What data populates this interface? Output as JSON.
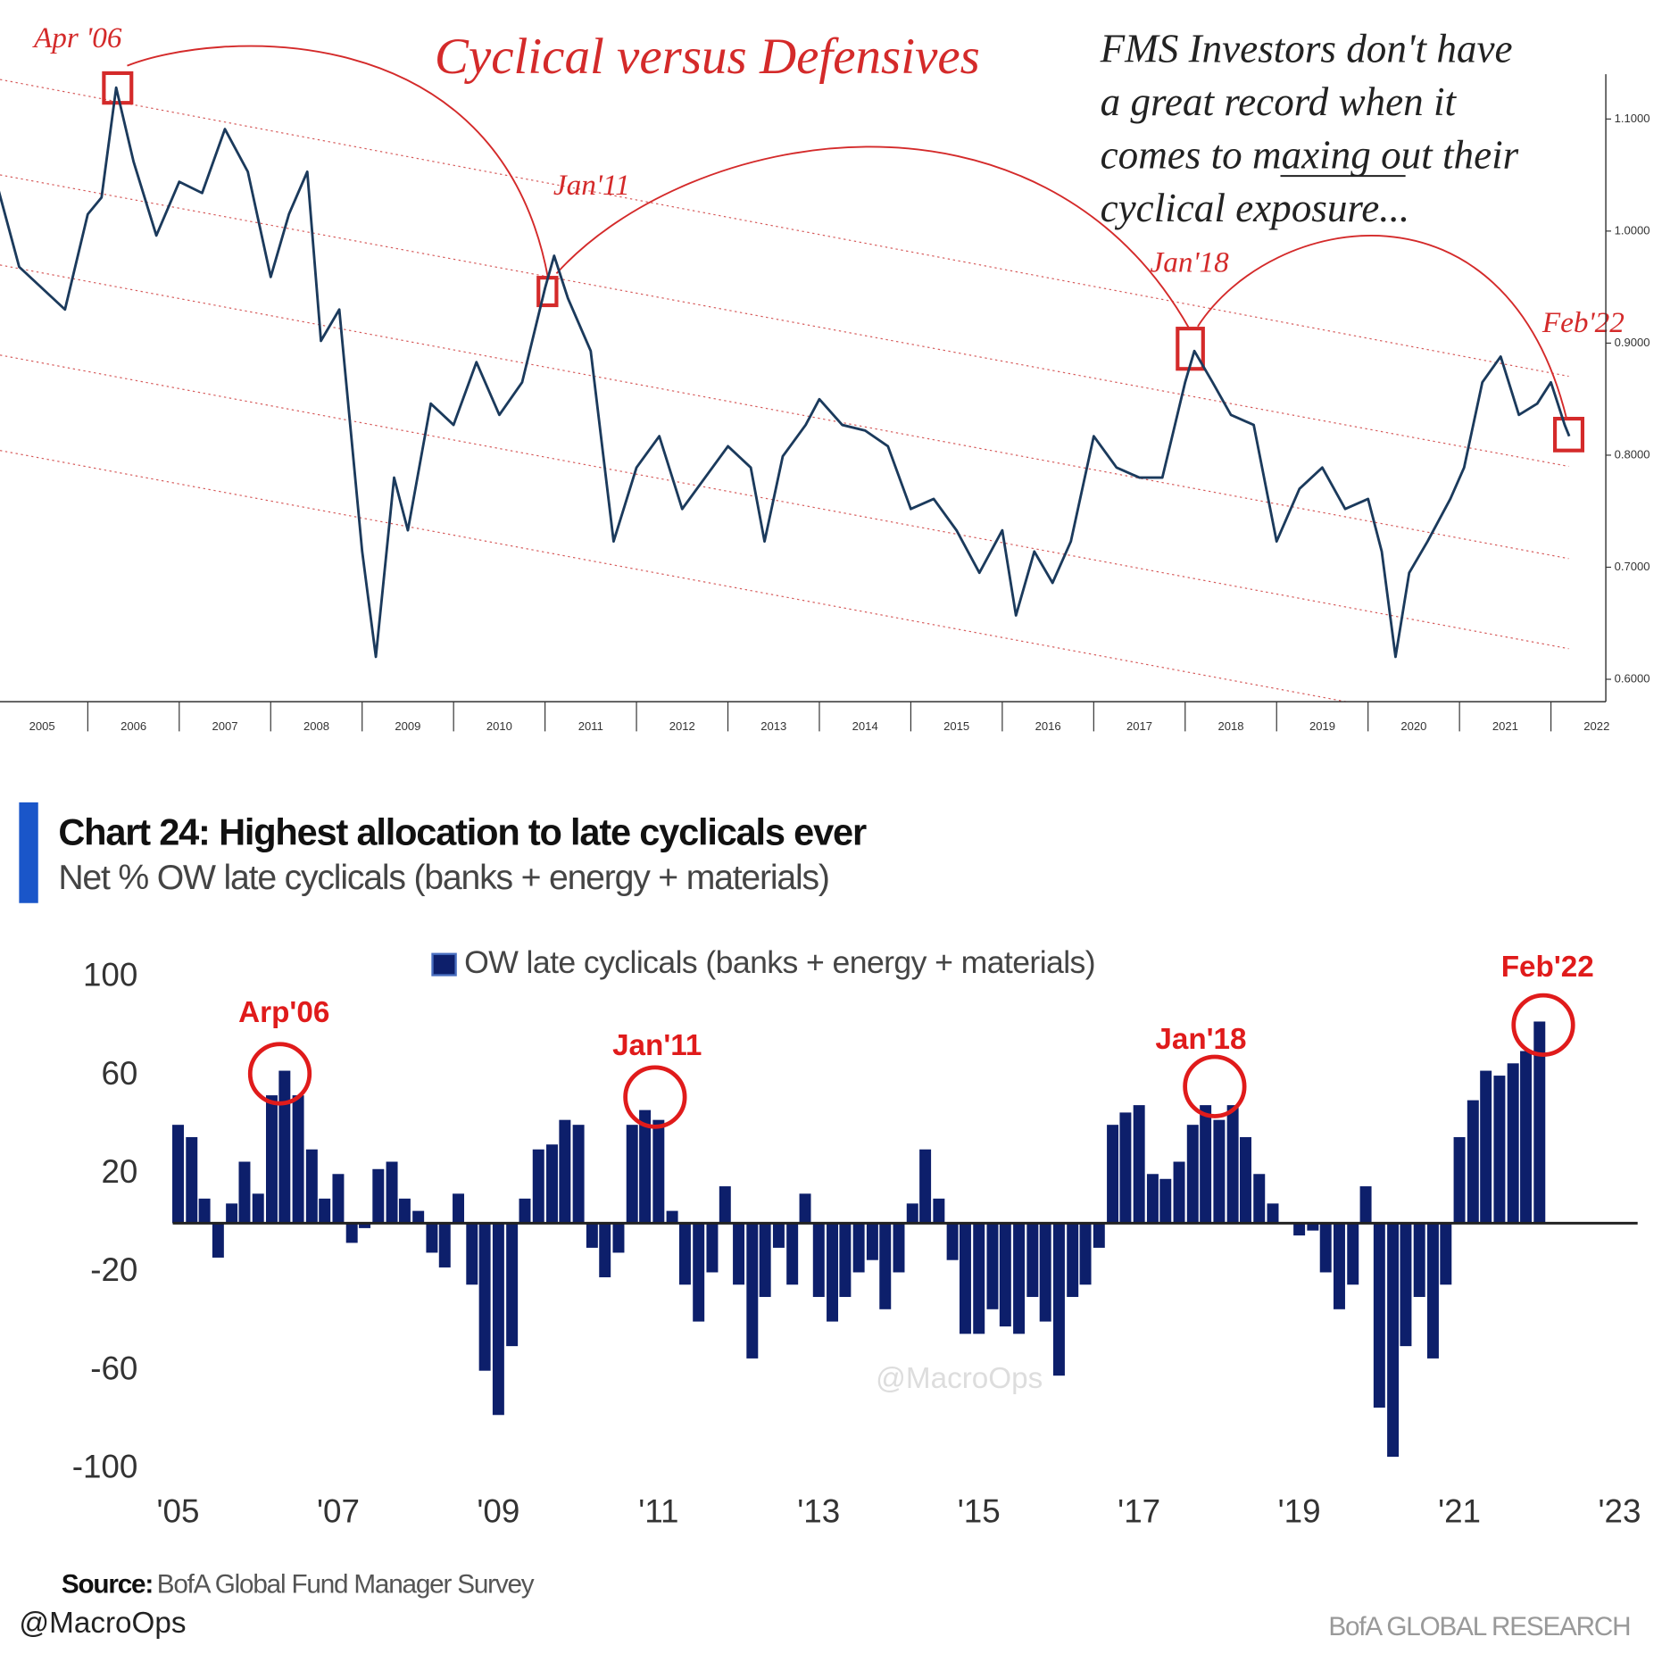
{
  "chart_data": [
    {
      "type": "line",
      "title": "Cyclical versus Defensives",
      "note": [
        "FMS Investors don't have",
        "a great record when it",
        "comes to maxing out their",
        "cyclical exposure..."
      ],
      "annotations": [
        "Apr '06",
        "Jan'11",
        "Jan'18",
        "Feb'22"
      ],
      "x": [
        2005,
        2005.25,
        2005.5,
        2005.75,
        2006,
        2006.15,
        2006.31,
        2006.5,
        2006.75,
        2007,
        2007.25,
        2007.5,
        2007.75,
        2008,
        2008.2,
        2008.4,
        2008.55,
        2008.75,
        2009,
        2009.15,
        2009.35,
        2009.5,
        2009.75,
        2010,
        2010.25,
        2010.5,
        2010.75,
        2011,
        2011.1,
        2011.25,
        2011.5,
        2011.75,
        2012,
        2012.25,
        2012.5,
        2012.75,
        2013,
        2013.25,
        2013.4,
        2013.6,
        2013.85,
        2014,
        2014.25,
        2014.5,
        2014.75,
        2015,
        2015.25,
        2015.5,
        2015.75,
        2016,
        2016.15,
        2016.35,
        2016.55,
        2016.75,
        2017,
        2017.25,
        2017.5,
        2017.75,
        2018,
        2018.1,
        2018.3,
        2018.5,
        2018.75,
        2019,
        2019.25,
        2019.5,
        2019.75,
        2020,
        2020.15,
        2020.3,
        2020.45,
        2020.65,
        2020.9,
        2021.05,
        2021.25,
        2021.45,
        2021.65,
        2021.85,
        2022,
        2022.15,
        2022.2
      ],
      "values": [
        1.044,
        0.968,
        0.949,
        0.93,
        1.015,
        1.03,
        1.128,
        1.062,
        0.996,
        1.044,
        1.034,
        1.091,
        1.053,
        0.959,
        1.015,
        1.053,
        0.902,
        0.93,
        0.714,
        0.62,
        0.78,
        0.733,
        0.846,
        0.827,
        0.883,
        0.836,
        0.865,
        0.949,
        0.978,
        0.94,
        0.893,
        0.723,
        0.789,
        0.817,
        0.752,
        0.78,
        0.808,
        0.789,
        0.723,
        0.799,
        0.827,
        0.85,
        0.827,
        0.822,
        0.808,
        0.752,
        0.761,
        0.733,
        0.695,
        0.733,
        0.657,
        0.714,
        0.686,
        0.723,
        0.817,
        0.789,
        0.78,
        0.78,
        0.865,
        0.893,
        0.865,
        0.836,
        0.827,
        0.723,
        0.77,
        0.789,
        0.752,
        0.761,
        0.714,
        0.62,
        0.695,
        0.723,
        0.761,
        0.789,
        0.865,
        0.888,
        0.836,
        0.846,
        0.865,
        0.827,
        0.817
      ],
      "color": "#1b3a5c",
      "xlim": [
        2005.04,
        2022.6
      ],
      "ylim": [
        0.58,
        1.14
      ],
      "xticks": [
        2005,
        2006,
        2007,
        2008,
        2009,
        2010,
        2011,
        2012,
        2013,
        2014,
        2015,
        2016,
        2017,
        2018,
        2019,
        2020,
        2021,
        2022
      ],
      "yticks": [
        {
          "value": 0.6,
          "label": "0.6000"
        },
        {
          "value": 0.7,
          "label": "0.7000"
        },
        {
          "value": 0.8,
          "label": "0.8000"
        },
        {
          "value": 0.9,
          "label": "0.9000"
        },
        {
          "value": 1.0,
          "label": "1.0000"
        },
        {
          "value": 1.1,
          "label": "1.1000"
        }
      ]
    },
    {
      "type": "bar",
      "title": "Chart 24: Highest allocation to late cyclicals ever",
      "subtitle": "Net % OW late cyclicals (banks + energy + materials)",
      "annotations": [
        "Arp'06",
        "Jan'11",
        "Jan'18",
        "Feb'22"
      ],
      "x": [
        2005,
        2005.17,
        2005.33,
        2005.5,
        2005.67,
        2005.83,
        2006,
        2006.17,
        2006.33,
        2006.5,
        2006.67,
        2006.83,
        2007,
        2007.17,
        2007.33,
        2007.5,
        2007.67,
        2007.83,
        2008,
        2008.17,
        2008.33,
        2008.5,
        2008.67,
        2008.83,
        2009,
        2009.17,
        2009.33,
        2009.5,
        2009.67,
        2009.83,
        2010,
        2010.17,
        2010.33,
        2010.5,
        2010.67,
        2010.83,
        2011,
        2011.17,
        2011.33,
        2011.5,
        2011.67,
        2011.83,
        2012,
        2012.17,
        2012.33,
        2012.5,
        2012.67,
        2012.83,
        2013,
        2013.17,
        2013.33,
        2013.5,
        2013.67,
        2013.83,
        2014,
        2014.17,
        2014.33,
        2014.5,
        2014.67,
        2014.83,
        2015,
        2015.17,
        2015.33,
        2015.5,
        2015.67,
        2015.83,
        2016,
        2016.17,
        2016.33,
        2016.5,
        2016.67,
        2016.83,
        2017,
        2017.17,
        2017.33,
        2017.5,
        2017.67,
        2017.83,
        2018,
        2018.17,
        2018.33,
        2018.5,
        2018.67,
        2018.83,
        2019,
        2019.17,
        2019.33,
        2019.5,
        2019.67,
        2019.83,
        2020,
        2020.17,
        2020.33,
        2020.5,
        2020.67,
        2020.83,
        2021,
        2021.17,
        2021.33,
        2021.5,
        2021.67,
        2021.83,
        2022
      ],
      "series": [
        {
          "name": "OW late cyclicals (banks + energy + materials)",
          "color": "#0d1f6b",
          "values": [
            40,
            35,
            10,
            -14,
            8,
            25,
            12,
            52,
            62,
            52,
            30,
            10,
            20,
            -8,
            -2,
            22,
            25,
            10,
            5,
            -12,
            -18,
            12,
            -25,
            -60,
            -78,
            -50,
            10,
            30,
            32,
            42,
            40,
            -10,
            -22,
            -12,
            40,
            46,
            42,
            5,
            -25,
            -40,
            -20,
            15,
            -25,
            -55,
            -30,
            -10,
            -25,
            12,
            -30,
            -40,
            -30,
            -20,
            -15,
            -35,
            -20,
            8,
            30,
            10,
            -15,
            -45,
            -45,
            -35,
            -42,
            -45,
            -30,
            -40,
            -62,
            -30,
            -25,
            -10,
            40,
            45,
            48,
            20,
            18,
            25,
            40,
            48,
            42,
            48,
            35,
            20,
            8,
            0,
            -5,
            -3,
            -20,
            -35,
            -25,
            15,
            -75,
            -95,
            -50,
            -30,
            -55,
            -25,
            35,
            50,
            62,
            60,
            65,
            70,
            82
          ]
        }
      ],
      "ylim": [
        -100,
        100
      ],
      "yticks": [
        100,
        60,
        20,
        -20,
        -60,
        -100
      ],
      "xlim": [
        2005,
        2023
      ],
      "xticks": [
        {
          "value": 2005,
          "label": "'05"
        },
        {
          "value": 2007,
          "label": "'07"
        },
        {
          "value": 2009,
          "label": "'09"
        },
        {
          "value": 2011,
          "label": "'11"
        },
        {
          "value": 2013,
          "label": "'13"
        },
        {
          "value": 2015,
          "label": "'15"
        },
        {
          "value": 2017,
          "label": "'17"
        },
        {
          "value": 2019,
          "label": "'19"
        },
        {
          "value": 2021,
          "label": "'21"
        },
        {
          "value": 2023,
          "label": "'23"
        }
      ],
      "source_label": "Source:",
      "source": "BofA Global Fund Manager Survey",
      "watermark": "@MacroOps",
      "credit": "@MacroOps",
      "brand": "BofA GLOBAL RESEARCH"
    }
  ]
}
